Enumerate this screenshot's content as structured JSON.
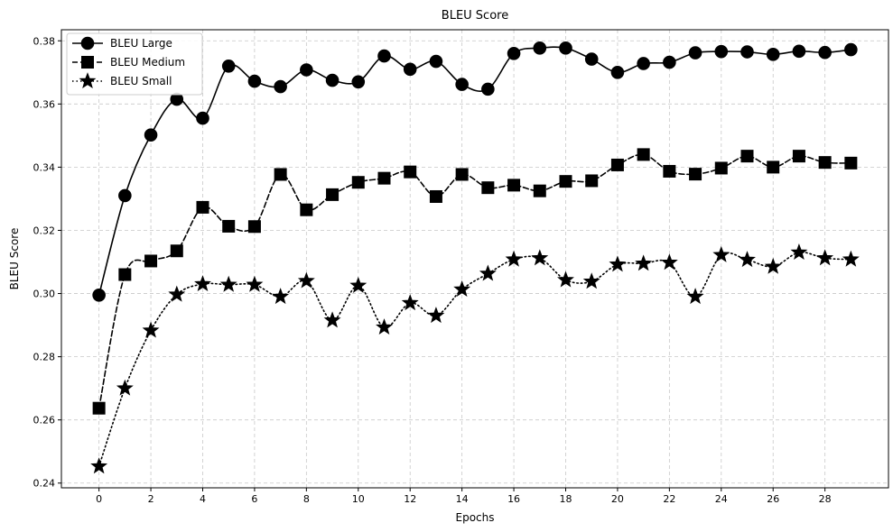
{
  "chart_data": {
    "type": "line",
    "title": "BLEU Score",
    "xlabel": "Epochs",
    "ylabel": "BLEU Score",
    "xlim": [
      -1.45,
      30.45
    ],
    "ylim": [
      0.2385,
      0.3835
    ],
    "xticks": [
      0,
      2,
      4,
      6,
      8,
      10,
      12,
      14,
      16,
      18,
      20,
      22,
      24,
      26,
      28
    ],
    "yticks": [
      0.24,
      0.26,
      0.28,
      0.3,
      0.32,
      0.34,
      0.36,
      0.38
    ],
    "ytick_labels": [
      "0.24",
      "0.26",
      "0.28",
      "0.30",
      "0.32",
      "0.34",
      "0.36",
      "0.38"
    ],
    "grid": true,
    "legend_position": "top-left",
    "x": [
      0,
      1,
      2,
      3,
      4,
      5,
      6,
      7,
      8,
      9,
      10,
      11,
      12,
      13,
      14,
      15,
      16,
      17,
      18,
      19,
      20,
      21,
      22,
      23,
      24,
      25,
      26,
      27,
      28,
      29
    ],
    "series": [
      {
        "name": "BLEU Large",
        "marker": "circle",
        "line_style": "solid",
        "color": "#000000",
        "values": [
          0.2995,
          0.331,
          0.3502,
          0.3615,
          0.3555,
          0.372,
          0.3672,
          0.3655,
          0.3708,
          0.3675,
          0.367,
          0.3752,
          0.371,
          0.3735,
          0.3662,
          0.3647,
          0.376,
          0.3777,
          0.3777,
          0.3742,
          0.37,
          0.3728,
          0.3732,
          0.3762,
          0.3766,
          0.3765,
          0.3757,
          0.3767,
          0.3763,
          0.3772
        ]
      },
      {
        "name": "BLEU Medium",
        "marker": "square",
        "line_style": "dashed",
        "color": "#000000",
        "values": [
          0.2637,
          0.306,
          0.3103,
          0.3135,
          0.3273,
          0.3213,
          0.3212,
          0.3377,
          0.3265,
          0.3313,
          0.3352,
          0.3365,
          0.3385,
          0.3307,
          0.3377,
          0.3335,
          0.3343,
          0.3325,
          0.3355,
          0.3357,
          0.3407,
          0.344,
          0.3387,
          0.3378,
          0.3397,
          0.3435,
          0.34,
          0.3435,
          0.3415,
          0.3413
        ]
      },
      {
        "name": "BLEU Small",
        "marker": "star",
        "line_style": "dotted",
        "color": "#000000",
        "values": [
          0.2453,
          0.27,
          0.2883,
          0.2997,
          0.303,
          0.3028,
          0.3028,
          0.299,
          0.304,
          0.2915,
          0.3025,
          0.2893,
          0.297,
          0.293,
          0.3013,
          0.3063,
          0.3108,
          0.3112,
          0.3043,
          0.3038,
          0.3092,
          0.3095,
          0.3098,
          0.299,
          0.3122,
          0.3107,
          0.3085,
          0.313,
          0.3112,
          0.3108
        ]
      }
    ]
  }
}
